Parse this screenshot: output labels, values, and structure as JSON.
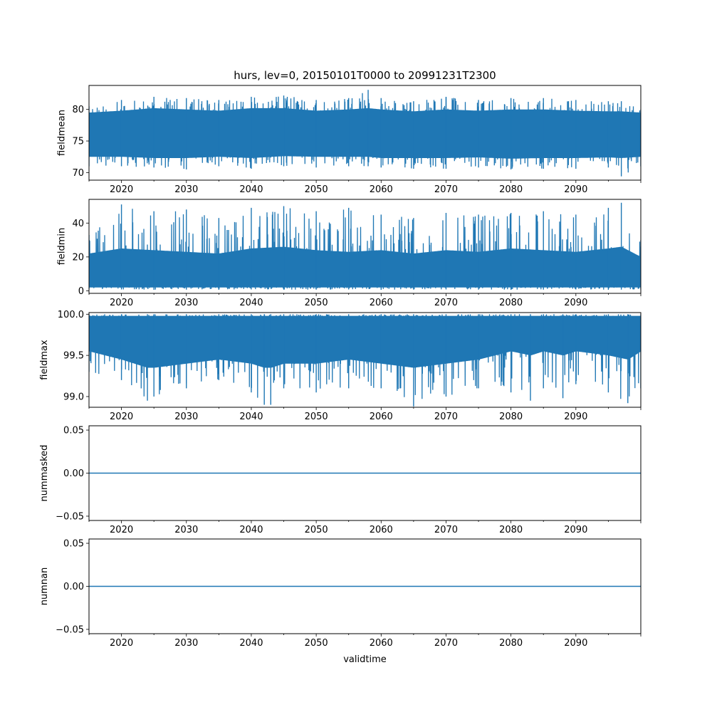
{
  "chart_data": {
    "type": "line",
    "title": "hurs, lev=0, 20150101T0000 to 20991231T2300",
    "xlabel": "validtime",
    "xlim": [
      2015.0,
      2100.0
    ],
    "xticks": [
      2020,
      2030,
      2040,
      2050,
      2060,
      2070,
      2080,
      2090
    ],
    "xtick_labels": [
      "2020",
      "2030",
      "2040",
      "2050",
      "2060",
      "2070",
      "2080",
      "2090"
    ],
    "line_color": "#1f77b4",
    "grid": false,
    "panels": [
      {
        "ylabel": "fieldmean",
        "ylim": [
          68.8,
          83.8
        ],
        "yticks": [
          70,
          75,
          80
        ],
        "ytick_labels": [
          "70",
          "75",
          "80"
        ],
        "series": {
          "x": [
            2015,
            2020,
            2025,
            2030,
            2035,
            2040,
            2045,
            2050,
            2055,
            2058,
            2060,
            2065,
            2070,
            2075,
            2080,
            2085,
            2090,
            2095,
            2097,
            2100
          ],
          "low": [
            71.0,
            71.0,
            70.8,
            70.5,
            71.0,
            70.6,
            71.0,
            70.8,
            71.0,
            71.0,
            70.8,
            70.6,
            70.6,
            70.8,
            70.5,
            70.6,
            70.6,
            70.8,
            69.4,
            71.0
          ],
          "high": [
            80.5,
            81.5,
            82.0,
            81.8,
            81.5,
            82.0,
            82.2,
            81.5,
            81.8,
            83.1,
            81.8,
            81.3,
            82.0,
            81.5,
            81.8,
            81.8,
            81.5,
            81.3,
            81.3,
            80.0
          ],
          "dense_low": [
            72.5,
            72.5,
            72.3,
            72.3,
            72.5,
            72.3,
            72.6,
            72.5,
            72.5,
            72.5,
            72.3,
            72.3,
            72.3,
            72.4,
            72.2,
            72.3,
            72.3,
            72.4,
            72.3,
            72.5
          ],
          "dense_high": [
            79.5,
            79.8,
            80.2,
            80.0,
            79.8,
            80.2,
            80.2,
            79.8,
            80.0,
            80.2,
            80.0,
            79.7,
            80.0,
            79.8,
            80.0,
            80.0,
            79.8,
            79.7,
            79.7,
            79.5
          ]
        }
      },
      {
        "ylabel": "fieldmin",
        "ylim": [
          -1.5,
          54.0
        ],
        "yticks": [
          0,
          20,
          40
        ],
        "ytick_labels": [
          "0",
          "20",
          "40"
        ],
        "series": {
          "x": [
            2015,
            2020,
            2025,
            2030,
            2035,
            2040,
            2045,
            2050,
            2055,
            2060,
            2065,
            2070,
            2075,
            2080,
            2085,
            2090,
            2095,
            2097,
            2100
          ],
          "low": [
            0.8,
            0.8,
            0.6,
            0.7,
            0.6,
            0.8,
            0.7,
            0.7,
            0.8,
            0.6,
            0.7,
            0.8,
            0.7,
            0.6,
            0.7,
            0.8,
            0.6,
            0.7,
            0.8
          ],
          "high": [
            33.0,
            51.0,
            47.0,
            48.0,
            43.0,
            49.0,
            50.0,
            47.0,
            49.0,
            45.0,
            43.0,
            46.0,
            45.0,
            46.0,
            47.0,
            45.0,
            49.0,
            52.0,
            30.0
          ],
          "dense_low": [
            2.0,
            2.0,
            2.0,
            2.0,
            2.0,
            2.0,
            2.0,
            2.0,
            2.0,
            2.0,
            2.0,
            2.0,
            2.0,
            2.0,
            2.0,
            2.0,
            2.0,
            2.0,
            2.0
          ],
          "dense_high": [
            22.0,
            25.0,
            24.0,
            23.0,
            22.0,
            25.0,
            26.0,
            24.0,
            23.0,
            24.0,
            22.0,
            24.0,
            23.0,
            25.0,
            24.0,
            23.0,
            25.0,
            26.0,
            20.0
          ]
        }
      },
      {
        "ylabel": "fieldmax",
        "ylim": [
          98.87,
          100.02
        ],
        "yticks": [
          99.0,
          99.5,
          100.0
        ],
        "ytick_labels": [
          "99.0",
          "99.5",
          "100.0"
        ],
        "series": {
          "x": [
            2015,
            2020,
            2024,
            2025,
            2030,
            2035,
            2040,
            2042,
            2043,
            2045,
            2050,
            2055,
            2060,
            2065,
            2070,
            2075,
            2080,
            2083,
            2085,
            2088,
            2090,
            2095,
            2098,
            2100
          ],
          "low": [
            99.3,
            99.2,
            98.95,
            99.0,
            99.1,
            99.2,
            99.05,
            98.9,
            98.9,
            99.1,
            99.05,
            99.1,
            99.1,
            98.88,
            99.0,
            99.1,
            99.05,
            98.95,
            99.1,
            98.98,
            99.15,
            99.05,
            98.92,
            99.1
          ],
          "high": [
            100.0,
            100.0,
            100.0,
            100.0,
            100.0,
            100.0,
            100.0,
            100.0,
            100.0,
            100.0,
            100.0,
            100.0,
            100.0,
            100.0,
            100.0,
            100.0,
            100.0,
            100.0,
            100.0,
            100.0,
            100.0,
            100.0,
            100.0,
            100.0
          ],
          "dense_low": [
            99.55,
            99.45,
            99.35,
            99.35,
            99.4,
            99.45,
            99.4,
            99.35,
            99.35,
            99.4,
            99.4,
            99.45,
            99.4,
            99.35,
            99.4,
            99.45,
            99.55,
            99.5,
            99.55,
            99.5,
            99.55,
            99.5,
            99.45,
            99.55
          ],
          "dense_high": [
            99.98,
            99.98,
            99.98,
            99.98,
            99.98,
            99.98,
            99.98,
            99.98,
            99.98,
            99.98,
            99.98,
            99.98,
            99.98,
            99.98,
            99.98,
            99.98,
            99.98,
            99.98,
            99.98,
            99.98,
            99.98,
            99.98,
            99.98,
            99.98
          ]
        }
      },
      {
        "ylabel": "nummasked",
        "ylim": [
          -0.055,
          0.055
        ],
        "yticks": [
          -0.05,
          0.0,
          0.05
        ],
        "ytick_labels": [
          "−0.05",
          "0.00",
          "0.05"
        ],
        "series": {
          "x": [
            2015,
            2100
          ],
          "y": [
            0,
            0
          ]
        }
      },
      {
        "ylabel": "numnan",
        "ylim": [
          -0.055,
          0.055
        ],
        "yticks": [
          -0.05,
          0.0,
          0.05
        ],
        "ytick_labels": [
          "−0.05",
          "0.00",
          "0.05"
        ],
        "series": {
          "x": [
            2015,
            2100
          ],
          "y": [
            0,
            0
          ]
        }
      }
    ]
  }
}
